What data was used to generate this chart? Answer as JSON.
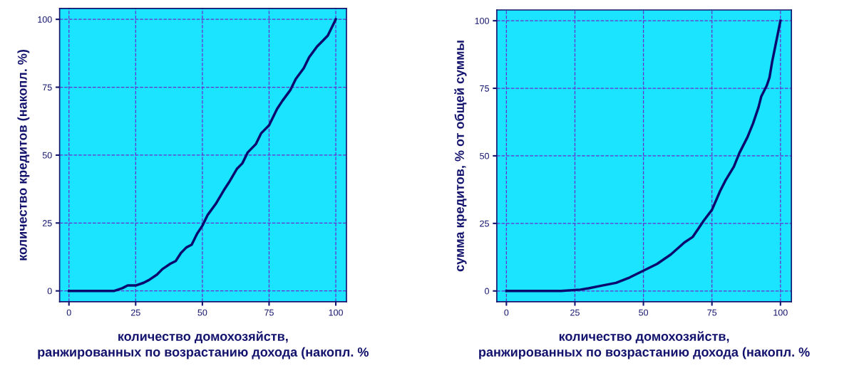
{
  "chart_data": [
    {
      "type": "line",
      "xlabel": "количество домохозяйств,\nранжированных по возрастанию дохода (накопл. %",
      "ylabel": "количество кредитов (накопл. %)",
      "xlim": [
        -3.5,
        104
      ],
      "ylim": [
        -4,
        104
      ],
      "xticks": [
        0,
        25,
        50,
        75,
        100
      ],
      "yticks": [
        0,
        25,
        50,
        75,
        100
      ],
      "grid": true,
      "marker": "none",
      "line_style": "solid",
      "series": [
        {
          "color": "#0a0a6e",
          "x": [
            0,
            17,
            20,
            22,
            25,
            28,
            30,
            33,
            35,
            38,
            40,
            42,
            44,
            46,
            48,
            50,
            52,
            55,
            58,
            60,
            63,
            65,
            67,
            70,
            72,
            75,
            78,
            80,
            83,
            85,
            88,
            90,
            93,
            95,
            97,
            100
          ],
          "values": [
            0,
            0,
            1,
            2,
            2,
            3,
            4,
            6,
            8,
            10,
            11,
            14,
            16,
            17,
            21,
            24,
            28,
            32,
            37,
            40,
            45,
            47,
            51,
            54,
            58,
            61,
            67,
            70,
            74,
            78,
            82,
            86,
            90,
            92,
            94,
            100
          ]
        }
      ]
    },
    {
      "type": "line",
      "xlabel": "количество домохозяйств,\nранжированных по возрастанию дохода (накопл. %",
      "ylabel": "сумма кредитов, % от общей суммы",
      "xlim": [
        -3.5,
        104
      ],
      "ylim": [
        -4,
        104
      ],
      "xticks": [
        0,
        25,
        50,
        75,
        100
      ],
      "yticks": [
        0,
        25,
        50,
        75,
        100
      ],
      "grid": true,
      "marker": "none",
      "line_style": "solid",
      "series": [
        {
          "color": "#0a0a6e",
          "x": [
            0,
            20,
            27,
            30,
            35,
            40,
            45,
            50,
            55,
            60,
            65,
            68,
            70,
            72,
            75,
            78,
            80,
            83,
            85,
            88,
            90,
            92,
            93,
            95,
            96,
            97,
            98,
            99,
            100
          ],
          "values": [
            0,
            0,
            0.5,
            1,
            2,
            3,
            5,
            7.5,
            10,
            13.5,
            18,
            20,
            23,
            26,
            30,
            37,
            41,
            46,
            51,
            57,
            62,
            68,
            72,
            76,
            79,
            85,
            90,
            95,
            100
          ]
        }
      ]
    }
  ]
}
